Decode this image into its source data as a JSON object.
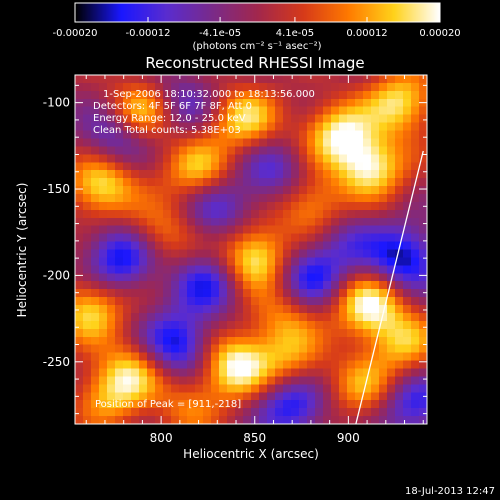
{
  "chart_data": {
    "type": "heatmap",
    "title": "Reconstructed RHESSI Image",
    "xlabel": "Heliocentric X (arcsec)",
    "ylabel": "Heliocentric Y (arcsec)",
    "xlim": [
      754,
      942
    ],
    "ylim": [
      -286,
      -84
    ],
    "x_ticks": [
      800,
      850,
      900
    ],
    "y_ticks": [
      -250,
      -200,
      -150,
      -100
    ],
    "colorbar": {
      "label": "(photons cm⁻² s⁻¹ asec⁻²)",
      "range": [
        -0.0002,
        0.0002
      ],
      "tick_labels": [
        "-0.00020",
        "-0.00012",
        "-4.1e-05",
        "4.1e-05",
        "0.00012",
        "0.00020"
      ],
      "tick_values": [
        -0.0002,
        -0.00012,
        -4.1e-05,
        4.1e-05,
        0.00012,
        0.0002
      ],
      "colors": [
        "#000000",
        "#1a17ff",
        "#5a2ccf",
        "#7a2a8a",
        "#a2274d",
        "#d63a1a",
        "#ff7a00",
        "#ffd21a",
        "#ffffff"
      ]
    },
    "annotations": [
      "1-Sep-2006 18:10:32.000 to 18:13:56.000",
      "Detectors: 4F 5F 6F 7F 8F, Att 0",
      "Energy Range: 12.0 - 25.0 keV",
      "Clean    Total counts: 5.38E+03"
    ],
    "peak_label": "Position of Peak = [911,-218]",
    "peak": [
      911,
      -218
    ],
    "limb_line": [
      [
        904,
        -286
      ],
      [
        940,
        -128
      ]
    ],
    "blobs": [
      {
        "x": 768,
        "y": -148,
        "v": 0.00018
      },
      {
        "x": 762,
        "y": -220,
        "v": 0.00016
      },
      {
        "x": 772,
        "y": -270,
        "v": 0.00012
      },
      {
        "x": 790,
        "y": -105,
        "v": 0.00016
      },
      {
        "x": 800,
        "y": -175,
        "v": 0.0001
      },
      {
        "x": 785,
        "y": -255,
        "v": 0.00013
      },
      {
        "x": 820,
        "y": -140,
        "v": 0.00015
      },
      {
        "x": 845,
        "y": -110,
        "v": 0.00016
      },
      {
        "x": 850,
        "y": -190,
        "v": 0.0002
      },
      {
        "x": 840,
        "y": -252,
        "v": 0.0002
      },
      {
        "x": 865,
        "y": -225,
        "v": 0.0001
      },
      {
        "x": 880,
        "y": -160,
        "v": 0.00013
      },
      {
        "x": 895,
        "y": -118,
        "v": 0.00018
      },
      {
        "x": 912,
        "y": -137,
        "v": 0.00019
      },
      {
        "x": 928,
        "y": -100,
        "v": 0.00017
      },
      {
        "x": 911,
        "y": -218,
        "v": 0.0002
      },
      {
        "x": 908,
        "y": -265,
        "v": 0.00012
      },
      {
        "x": 930,
        "y": -240,
        "v": 0.00013
      },
      {
        "x": 870,
        "y": -250,
        "v": 0.00011
      },
      {
        "x": 815,
        "y": -275,
        "v": 9e-05
      },
      {
        "x": 825,
        "y": -205,
        "v": -0.00014
      },
      {
        "x": 808,
        "y": -240,
        "v": -0.00018
      },
      {
        "x": 778,
        "y": -190,
        "v": -0.00017
      },
      {
        "x": 870,
        "y": -275,
        "v": -0.00016
      },
      {
        "x": 880,
        "y": -200,
        "v": -0.00015
      },
      {
        "x": 930,
        "y": -190,
        "v": -0.00018
      },
      {
        "x": 830,
        "y": -160,
        "v": -0.00012
      },
      {
        "x": 775,
        "y": -120,
        "v": -0.00012
      },
      {
        "x": 860,
        "y": -140,
        "v": -0.00011
      },
      {
        "x": 900,
        "y": -180,
        "v": -8e-05
      },
      {
        "x": 935,
        "y": -275,
        "v": -0.00014
      },
      {
        "x": 810,
        "y": -100,
        "v": -0.0001
      }
    ]
  },
  "timestamp": "18-Jul-2013 12:47"
}
